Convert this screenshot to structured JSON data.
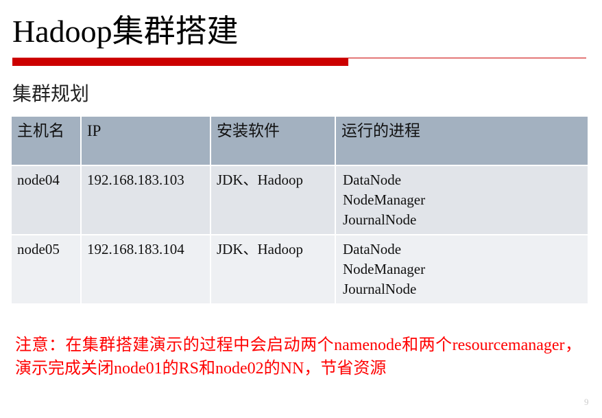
{
  "title": "Hadoop集群搭建",
  "subtitle": "集群规划",
  "table": {
    "headers": [
      "主机名",
      "IP",
      "安装软件",
      "运行的进程"
    ],
    "rows": [
      {
        "host": "node04",
        "ip": "192.168.183.103",
        "software": "JDK、Hadoop",
        "processes": [
          "DataNode",
          "NodeManager",
          "JournalNode"
        ]
      },
      {
        "host": "node05",
        "ip": "192.168.183.104",
        "software": "JDK、Hadoop",
        "processes": [
          "DataNode",
          "NodeManager",
          "JournalNode"
        ]
      }
    ]
  },
  "note": "注意：在集群搭建演示的过程中会启动两个namenode和两个resourcemanager，演示完成关闭node01的RS和node02的NN，节省资源",
  "page_number": "9",
  "colors": {
    "accent": "#cc0000",
    "note": "#ff0000",
    "header_bg": "#a3b1c0"
  }
}
